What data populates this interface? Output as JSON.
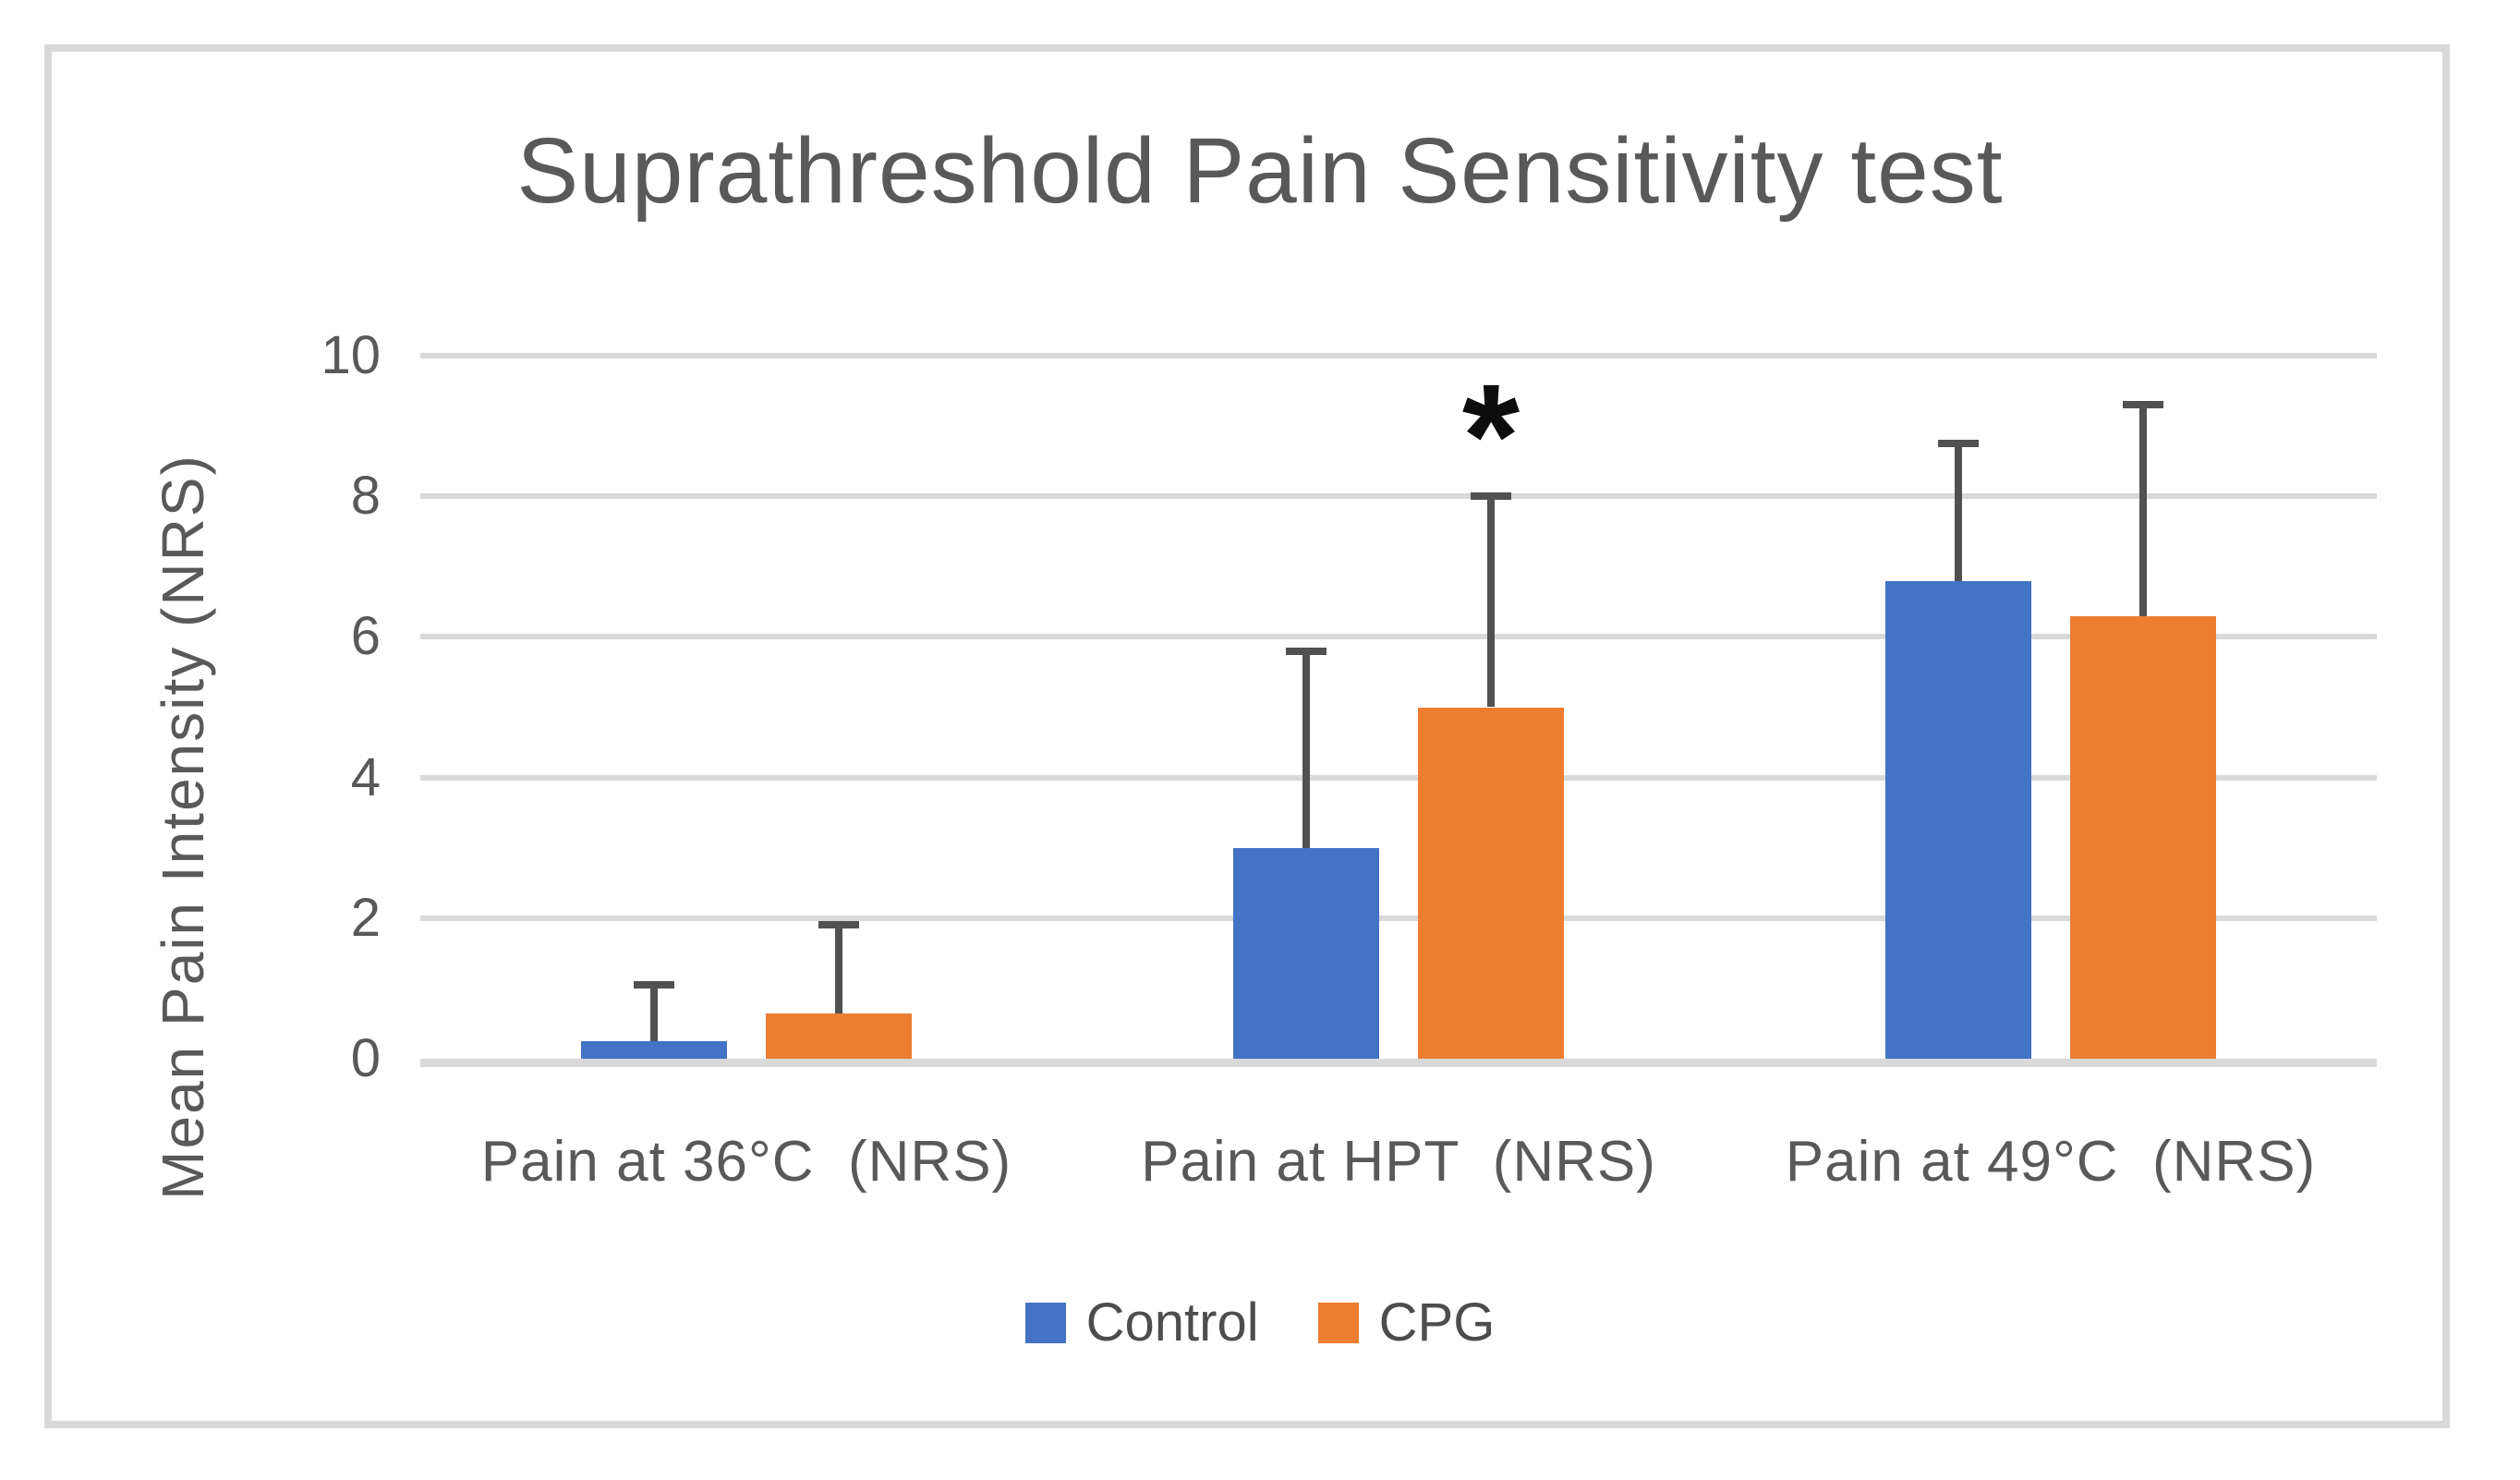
{
  "figure": {
    "background": "#FFFFFF",
    "frame_border_color": "#D9D9D9"
  },
  "colors": {
    "control_series": "#4472C4",
    "cpg_series": "#ED7D31",
    "gridline": "#D9D9D9",
    "error_bar": "#515151",
    "text": "#595959",
    "legend_text": "#4D4D4D",
    "annotation": "#0D0D0D"
  },
  "chart_data": {
    "type": "bar",
    "title": "Suprathreshold Pain Sensitivity test",
    "xlabel": "",
    "ylabel": "Mean Pain Intensity (NRS)",
    "ylim": [
      0,
      10
    ],
    "yticks": [
      0,
      2,
      4,
      6,
      8,
      10
    ],
    "grid": true,
    "legend_position": "bottom-center",
    "categories": [
      "Pain at 36°C  (NRS)",
      "Pain at HPT  (NRS)",
      "Pain at 49°C  (NRS)"
    ],
    "series": [
      {
        "name": "Control",
        "color": "#4472C4",
        "values": [
          0.25,
          3.0,
          6.8
        ],
        "errors_upper": [
          0.8,
          2.8,
          1.95
        ]
      },
      {
        "name": "CPG",
        "color": "#ED7D31",
        "values": [
          0.65,
          5.0,
          6.3
        ],
        "errors_upper": [
          1.25,
          3.0,
          3.0
        ]
      }
    ],
    "annotations": [
      {
        "text": "*",
        "meaning": "significance-marker",
        "series": "CPG",
        "category_index": 1
      }
    ]
  }
}
